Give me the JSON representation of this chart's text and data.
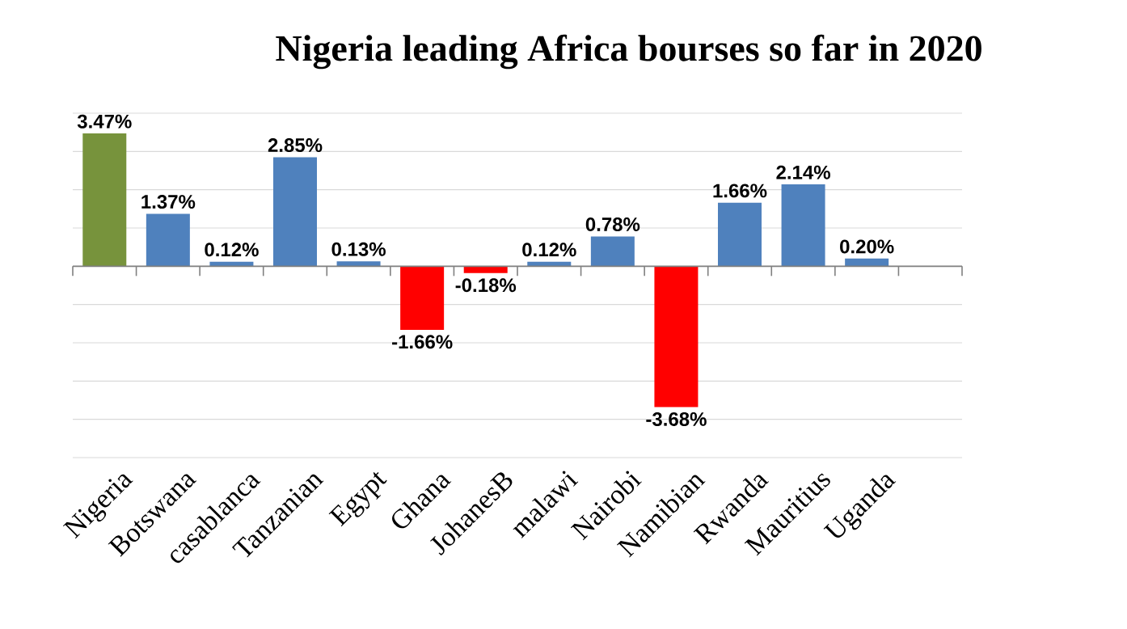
{
  "chart_data": {
    "type": "bar",
    "title": "Nigeria leading Africa bourses so far in 2020",
    "categories": [
      "Nigeria",
      "Botswana",
      "casablanca",
      "Tanzanian",
      "Egypt",
      "Ghana",
      "JohanesB",
      "malawi",
      "Nairobi",
      "Namibian",
      "Rwanda",
      "Mauritius",
      "Uganda",
      null
    ],
    "values": [
      3.47,
      1.37,
      0.12,
      2.85,
      0.13,
      -1.66,
      -0.18,
      0.12,
      0.78,
      -3.68,
      1.66,
      2.14,
      0.2,
      null
    ],
    "value_labels": [
      "3.47%",
      "1.37%",
      "0.12%",
      "2.85%",
      "0.13%",
      "-1.66%",
      "-0.18%",
      "0.12%",
      "0.78%",
      "-3.68%",
      "1.66%",
      "2.14%",
      "0.20%",
      null
    ],
    "colors": [
      "#77933c",
      "#4f81bd",
      "#4f81bd",
      "#4f81bd",
      "#4f81bd",
      "#ff0000",
      "#ff0000",
      "#4f81bd",
      "#4f81bd",
      "#ff0000",
      "#4f81bd",
      "#4f81bd",
      "#4f81bd",
      "#4f81bd"
    ],
    "ylim": [
      -5,
      4
    ],
    "yticks": [
      {
        "value": -5,
        "label": null
      },
      {
        "value": -4,
        "label": null
      },
      {
        "value": -3,
        "label": null
      },
      {
        "value": -2,
        "label": null
      },
      {
        "value": -1,
        "label": null
      },
      {
        "value": 0,
        "label": null
      },
      {
        "value": 1,
        "label": null
      },
      {
        "value": 2,
        "label": null
      },
      {
        "value": 3,
        "label": null
      },
      {
        "value": 4,
        "label": null
      }
    ],
    "grid": "y",
    "tick_labels": "x"
  }
}
